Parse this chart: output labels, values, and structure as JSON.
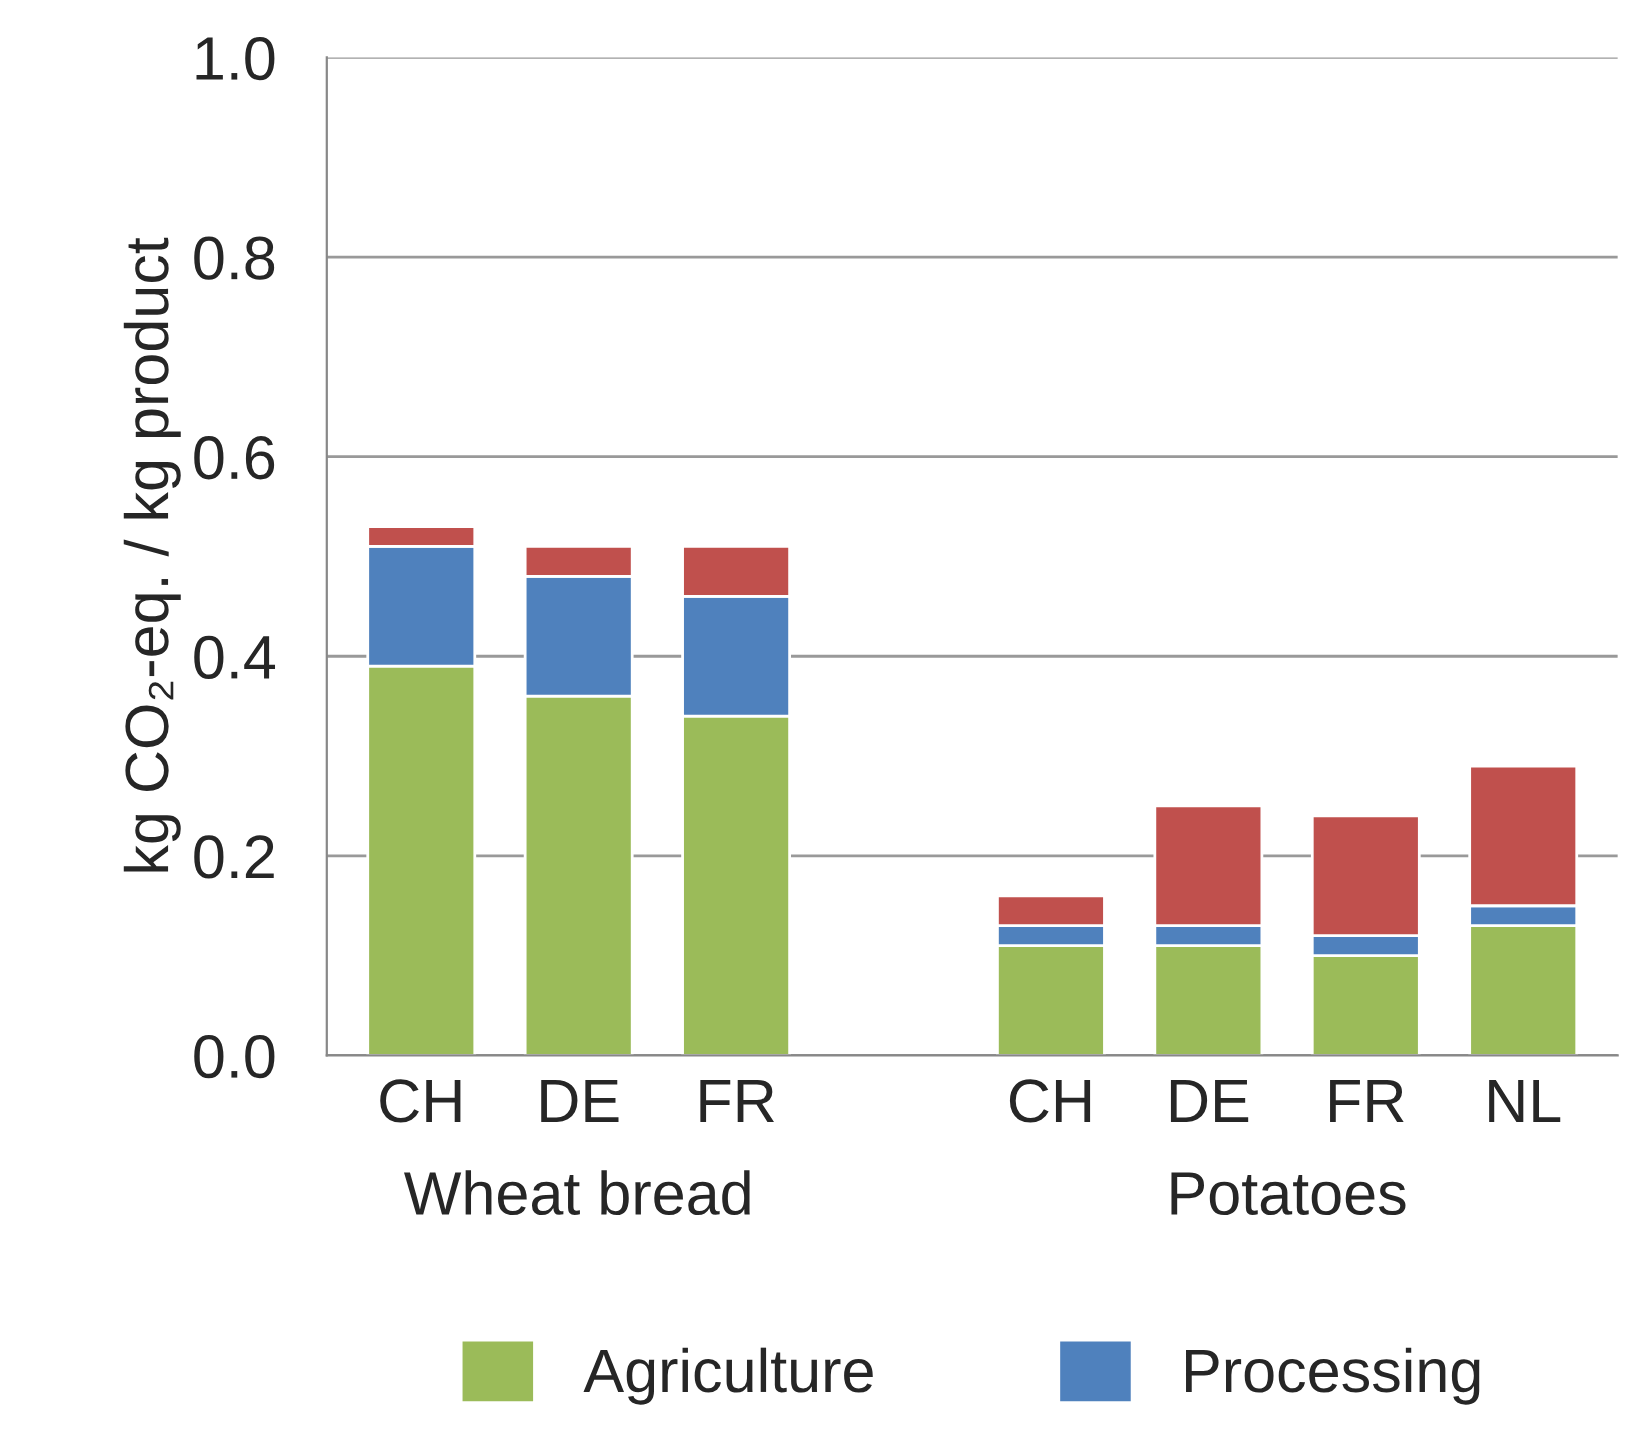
{
  "chart_data": {
    "type": "bar",
    "stacked": true,
    "ylabel": "kg CO₂-eq. / kg product",
    "categories": [
      "CH",
      "DE",
      "FR",
      null,
      "CH",
      "DE",
      "FR",
      "NL"
    ],
    "series": [
      {
        "name": "Agriculture",
        "color": "#9bbb59",
        "values": [
          0.39,
          0.36,
          0.34,
          null,
          0.11,
          0.11,
          0.1,
          0.13
        ]
      },
      {
        "name": "Processing",
        "color": "#4f81bd",
        "values": [
          0.12,
          0.12,
          0.12,
          null,
          0.02,
          0.02,
          0.02,
          0.02
        ]
      },
      {
        "color": "#c0504d",
        "values": [
          0.02,
          0.03,
          0.05,
          null,
          0.03,
          0.12,
          0.12,
          0.14
        ]
      }
    ],
    "ylim": [
      0,
      1.0
    ],
    "yticks": [
      {
        "value": 0,
        "label": "0.0"
      },
      {
        "value": 0.2,
        "label": "0.2"
      },
      {
        "value": 0.4,
        "label": "0.4"
      },
      {
        "value": 0.6,
        "label": "0.6"
      },
      {
        "value": 0.8,
        "label": "0.8"
      },
      {
        "value": 1.0,
        "label": "1.0"
      }
    ],
    "grid": "y",
    "legend": "bottom",
    "annotations": [
      "Wheat bread",
      "Potatoes"
    ]
  }
}
